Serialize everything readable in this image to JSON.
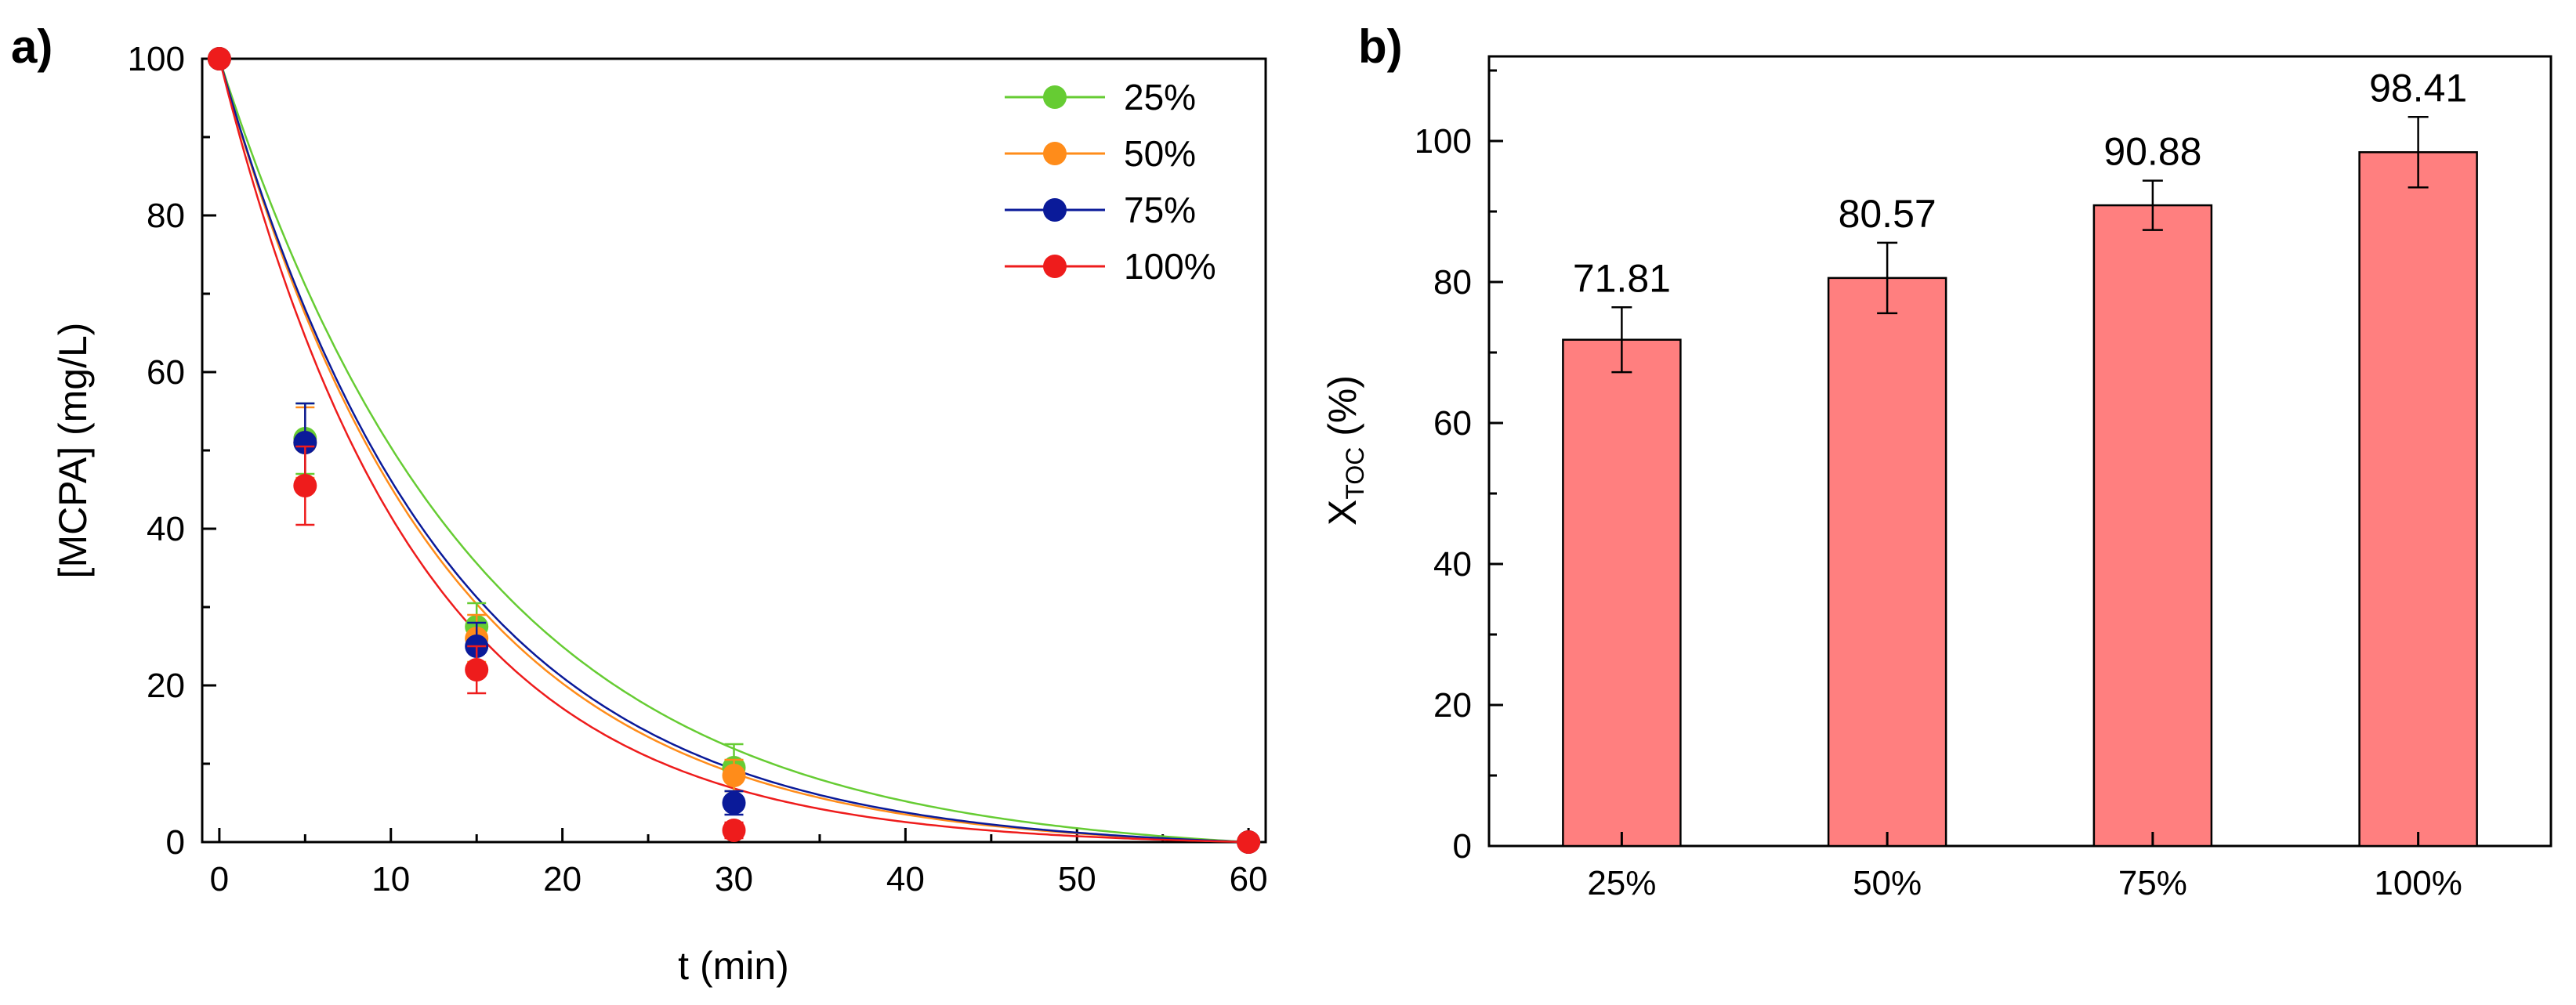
{
  "chart_data": [
    {
      "panel": "a)",
      "type": "scatter",
      "xlabel": "t (min)",
      "ylabel": "[MCPA] (mg/L)",
      "xlim": [
        0,
        60
      ],
      "ylim": [
        0,
        100
      ],
      "xticks": [
        0,
        10,
        20,
        30,
        40,
        50,
        60
      ],
      "yticks": [
        0,
        20,
        40,
        60,
        80,
        100
      ],
      "grid": false,
      "legend_position": "top-right",
      "x": [
        0,
        5,
        15,
        30,
        60
      ],
      "series": [
        {
          "name": "25%",
          "color": "#66cc33",
          "values": [
            100,
            51.5,
            27.5,
            9.5,
            0
          ],
          "errors": [
            0,
            4.5,
            3.0,
            3.0,
            0
          ],
          "fit_k": 0.0667
        },
        {
          "name": "50%",
          "color": "#ff8c1a",
          "values": [
            100,
            51.0,
            26.0,
            8.5,
            0
          ],
          "errors": [
            0,
            4.5,
            3.0,
            2.0,
            0
          ],
          "fit_k": 0.078
        },
        {
          "name": "75%",
          "color": "#0a1a99",
          "values": [
            100,
            51.0,
            25.0,
            5.0,
            0
          ],
          "errors": [
            0,
            5.0,
            3.0,
            1.5,
            0
          ],
          "fit_k": 0.076
        },
        {
          "name": "100%",
          "color": "#ee1c1c",
          "values": [
            100,
            45.5,
            22.0,
            1.5,
            0
          ],
          "errors": [
            0,
            5.0,
            3.0,
            1.0,
            0
          ],
          "fit_k": 0.087
        }
      ]
    },
    {
      "panel": "b)",
      "type": "bar",
      "xlabel": "",
      "ylabel_main": "X",
      "ylabel_sub": "TOC",
      "ylabel_rest": " (%)",
      "categories": [
        "25%",
        "50%",
        "75%",
        "100%"
      ],
      "values": [
        71.81,
        80.57,
        90.88,
        98.41
      ],
      "value_labels": [
        "71.81",
        "80.57",
        "90.88",
        "98.41"
      ],
      "errors": [
        4.6,
        5.0,
        3.5,
        5.0
      ],
      "ylim": [
        0,
        112
      ],
      "yticks": [
        0,
        20,
        40,
        60,
        80,
        100
      ],
      "grid": false,
      "bar_color": "#ff7f7f"
    }
  ]
}
